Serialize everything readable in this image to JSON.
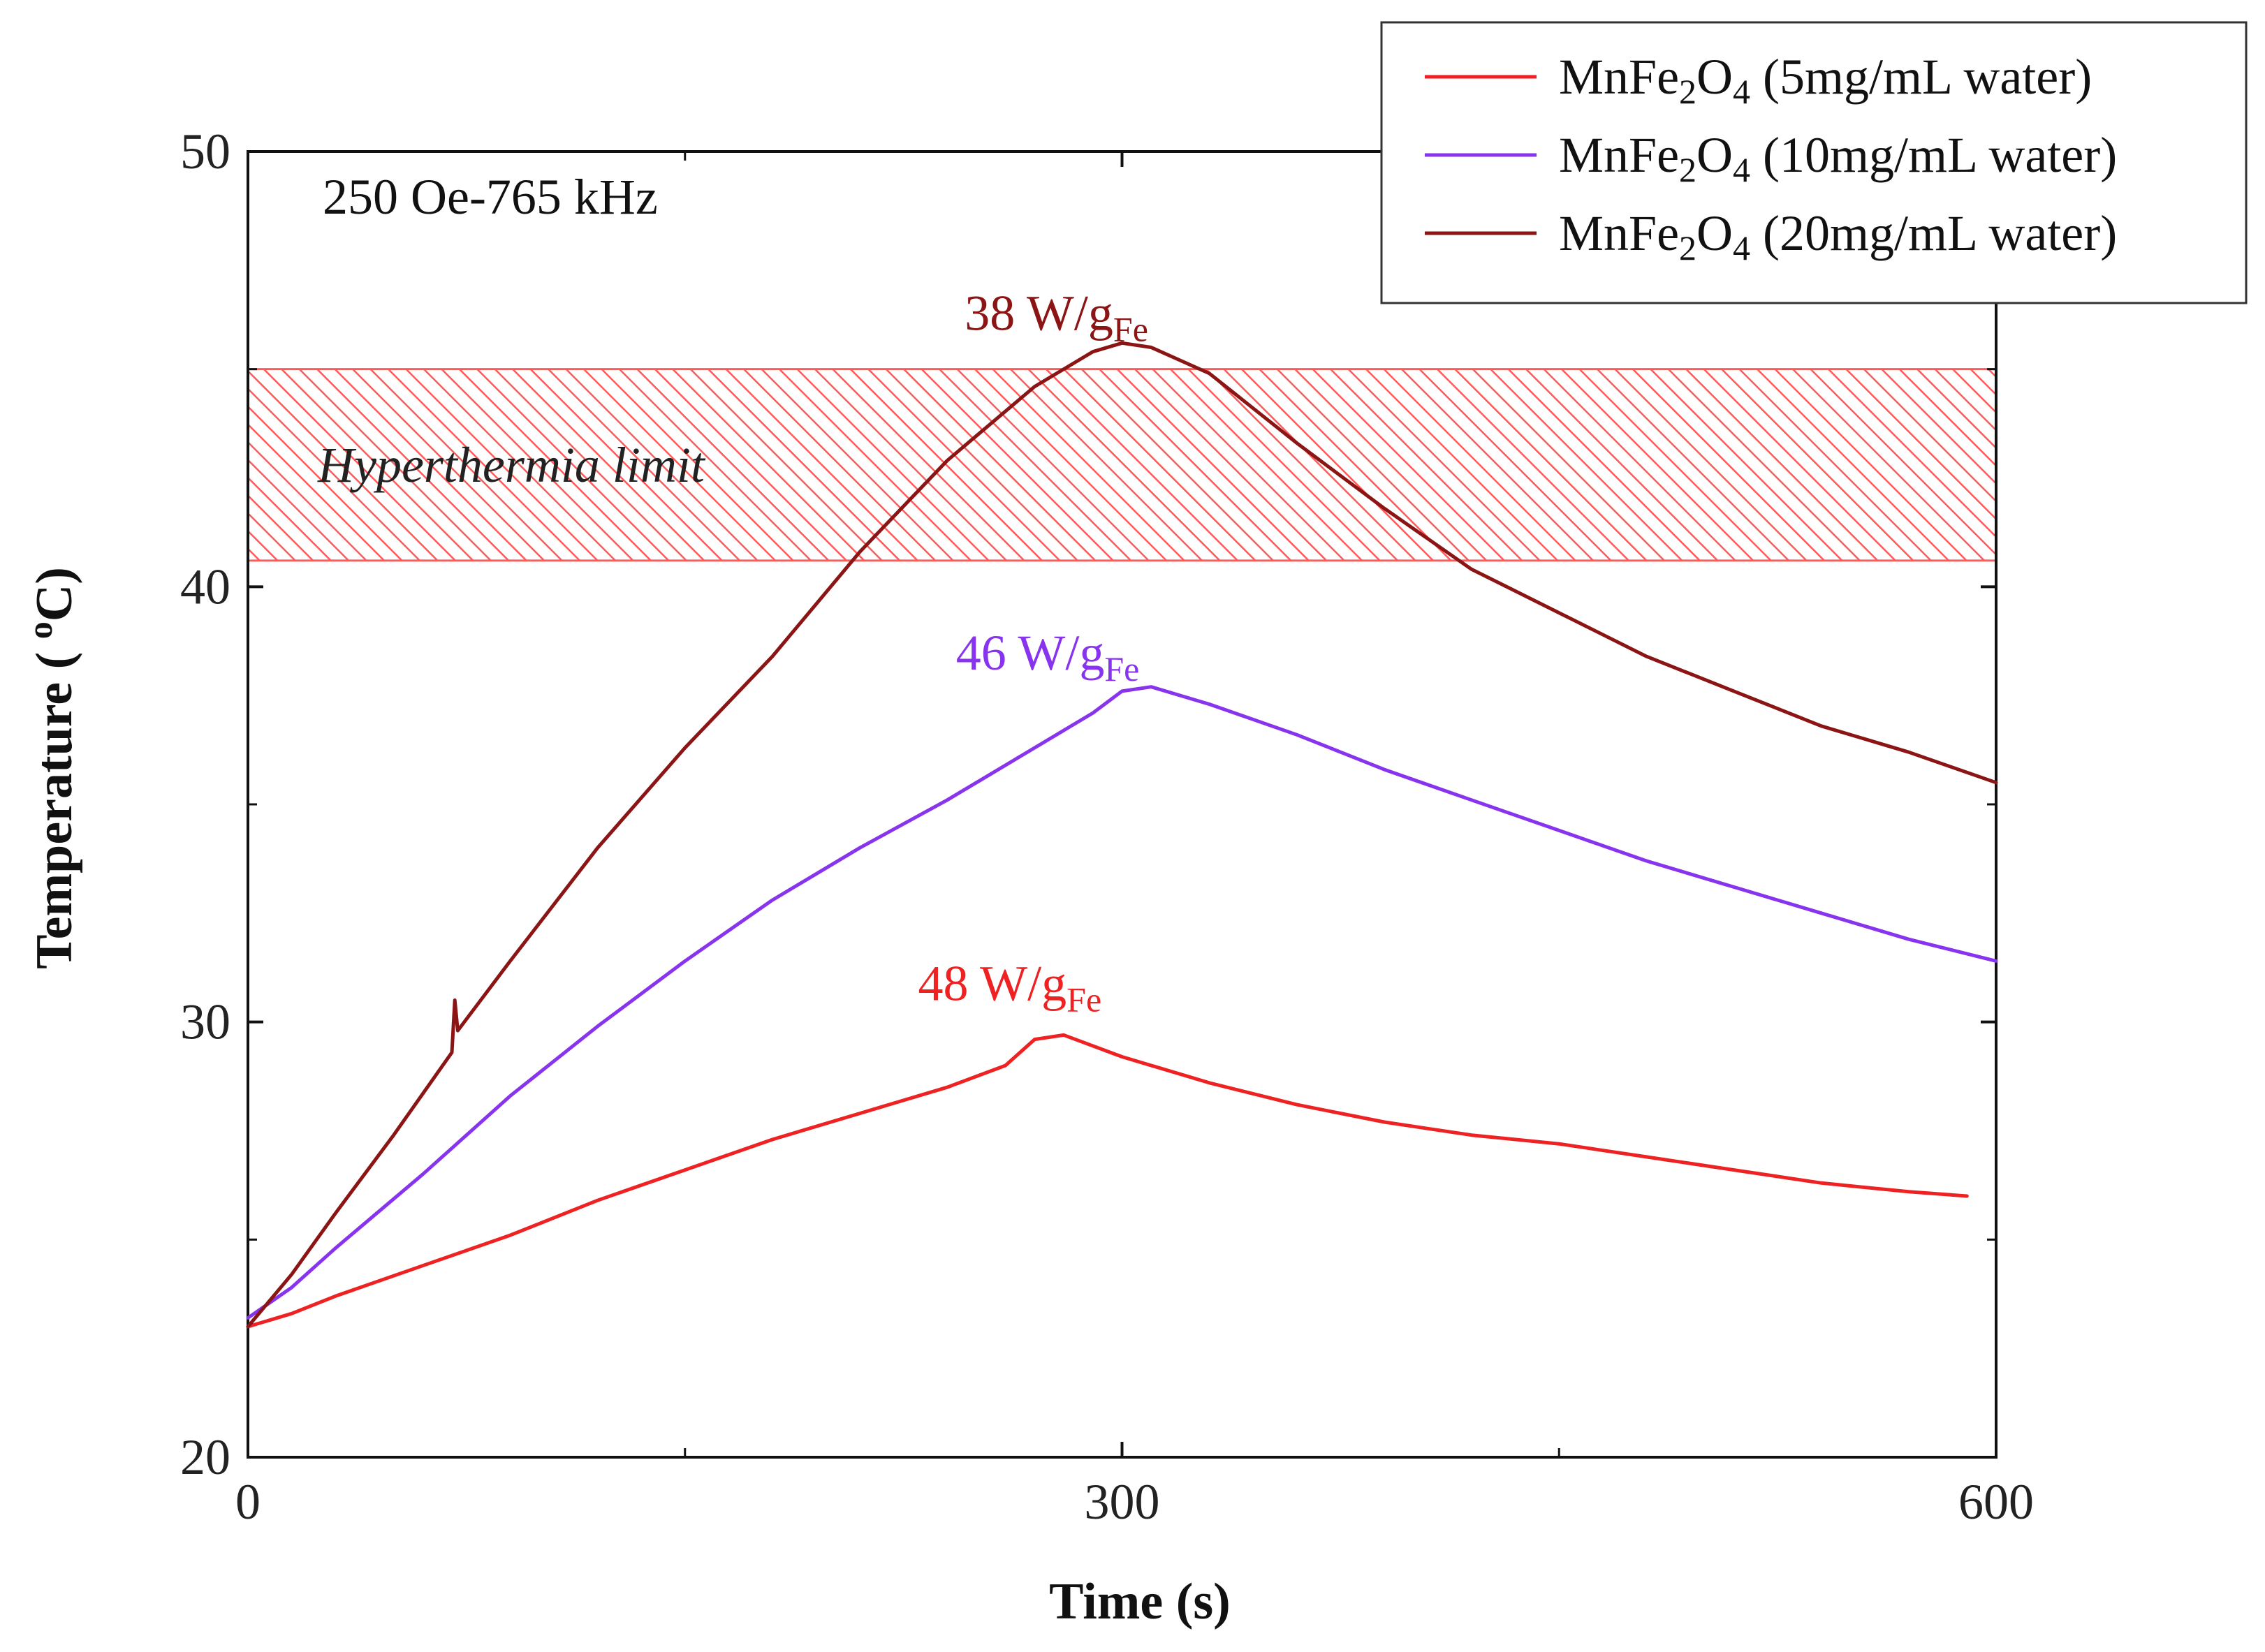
{
  "chart_data": {
    "type": "line",
    "title": "",
    "condition_label": "250 Oe-765 kHz",
    "xlabel": "Time (s)",
    "ylabel": "Temperature ( ",
    "ylabel_sup": "o",
    "ylabel_end": "C)",
    "xlim": [
      0,
      600
    ],
    "ylim": [
      20,
      50
    ],
    "x_ticks_major": [
      0,
      300,
      600
    ],
    "x_ticks_minor": [
      150,
      450
    ],
    "y_ticks_major": [
      20,
      30,
      40,
      50
    ],
    "y_ticks_minor": [
      25,
      35,
      45
    ],
    "band": {
      "label": "Hyperthermia limit",
      "y_from": 40.6,
      "y_to": 45,
      "color": "#ff5a5a"
    },
    "series": [
      {
        "name": "MnFe2O4 (5mg/mL water)",
        "legend_main": "MnFe",
        "legend_sub1": "2",
        "legend_mid": "O",
        "legend_sub2": "4",
        "legend_rest": " (5mg/mL water)",
        "color": "#ee2222",
        "x": [
          0,
          15,
          30,
          60,
          90,
          120,
          150,
          180,
          210,
          240,
          260,
          270,
          280,
          300,
          330,
          360,
          390,
          420,
          450,
          480,
          510,
          540,
          570,
          590
        ],
        "y": [
          23.0,
          23.3,
          23.7,
          24.4,
          25.1,
          25.9,
          26.6,
          27.3,
          27.9,
          28.5,
          29.0,
          29.6,
          29.7,
          29.2,
          28.6,
          28.1,
          27.7,
          27.4,
          27.2,
          26.9,
          26.6,
          26.3,
          26.1,
          26.0
        ],
        "annotation": {
          "x": 230,
          "y": 30.5,
          "main": "48 W/g",
          "sub": "Fe"
        }
      },
      {
        "name": "MnFe2O4 (10mg/mL water)",
        "legend_main": "MnFe",
        "legend_sub1": "2",
        "legend_mid": "O",
        "legend_sub2": "4",
        "legend_rest": " (10mg/mL water)",
        "color": "#8833ee",
        "x": [
          0,
          15,
          30,
          60,
          90,
          120,
          150,
          180,
          210,
          240,
          270,
          290,
          300,
          310,
          330,
          360,
          390,
          420,
          450,
          480,
          510,
          540,
          570,
          600
        ],
        "y": [
          23.2,
          23.9,
          24.8,
          26.5,
          28.3,
          29.9,
          31.4,
          32.8,
          34.0,
          35.1,
          36.3,
          37.1,
          37.6,
          37.7,
          37.3,
          36.6,
          35.8,
          35.1,
          34.4,
          33.7,
          33.1,
          32.5,
          31.9,
          31.4
        ],
        "annotation": {
          "x": 243,
          "y": 38.1,
          "main": "46 W/g",
          "sub": "Fe"
        }
      },
      {
        "name": "MnFe2O4 (20mg/mL water)",
        "legend_main": "MnFe",
        "legend_sub1": "2",
        "legend_mid": "O",
        "legend_sub2": "4",
        "legend_rest": " (20mg/mL water)",
        "color": "#8b1414",
        "x": [
          0,
          15,
          30,
          50,
          70,
          71,
          72,
          90,
          120,
          150,
          180,
          210,
          240,
          270,
          290,
          300,
          310,
          330,
          360,
          390,
          420,
          450,
          480,
          510,
          540,
          570,
          600
        ],
        "y": [
          23.0,
          24.2,
          25.6,
          27.4,
          29.3,
          30.5,
          29.8,
          31.4,
          34.0,
          36.3,
          38.4,
          40.8,
          42.9,
          44.6,
          45.4,
          45.6,
          45.5,
          44.9,
          43.3,
          41.8,
          40.4,
          39.4,
          38.4,
          37.6,
          36.8,
          36.2,
          35.5
        ],
        "annotation": {
          "x": 246,
          "y": 45.9,
          "main": "38 W/g",
          "sub": "Fe"
        }
      }
    ]
  }
}
